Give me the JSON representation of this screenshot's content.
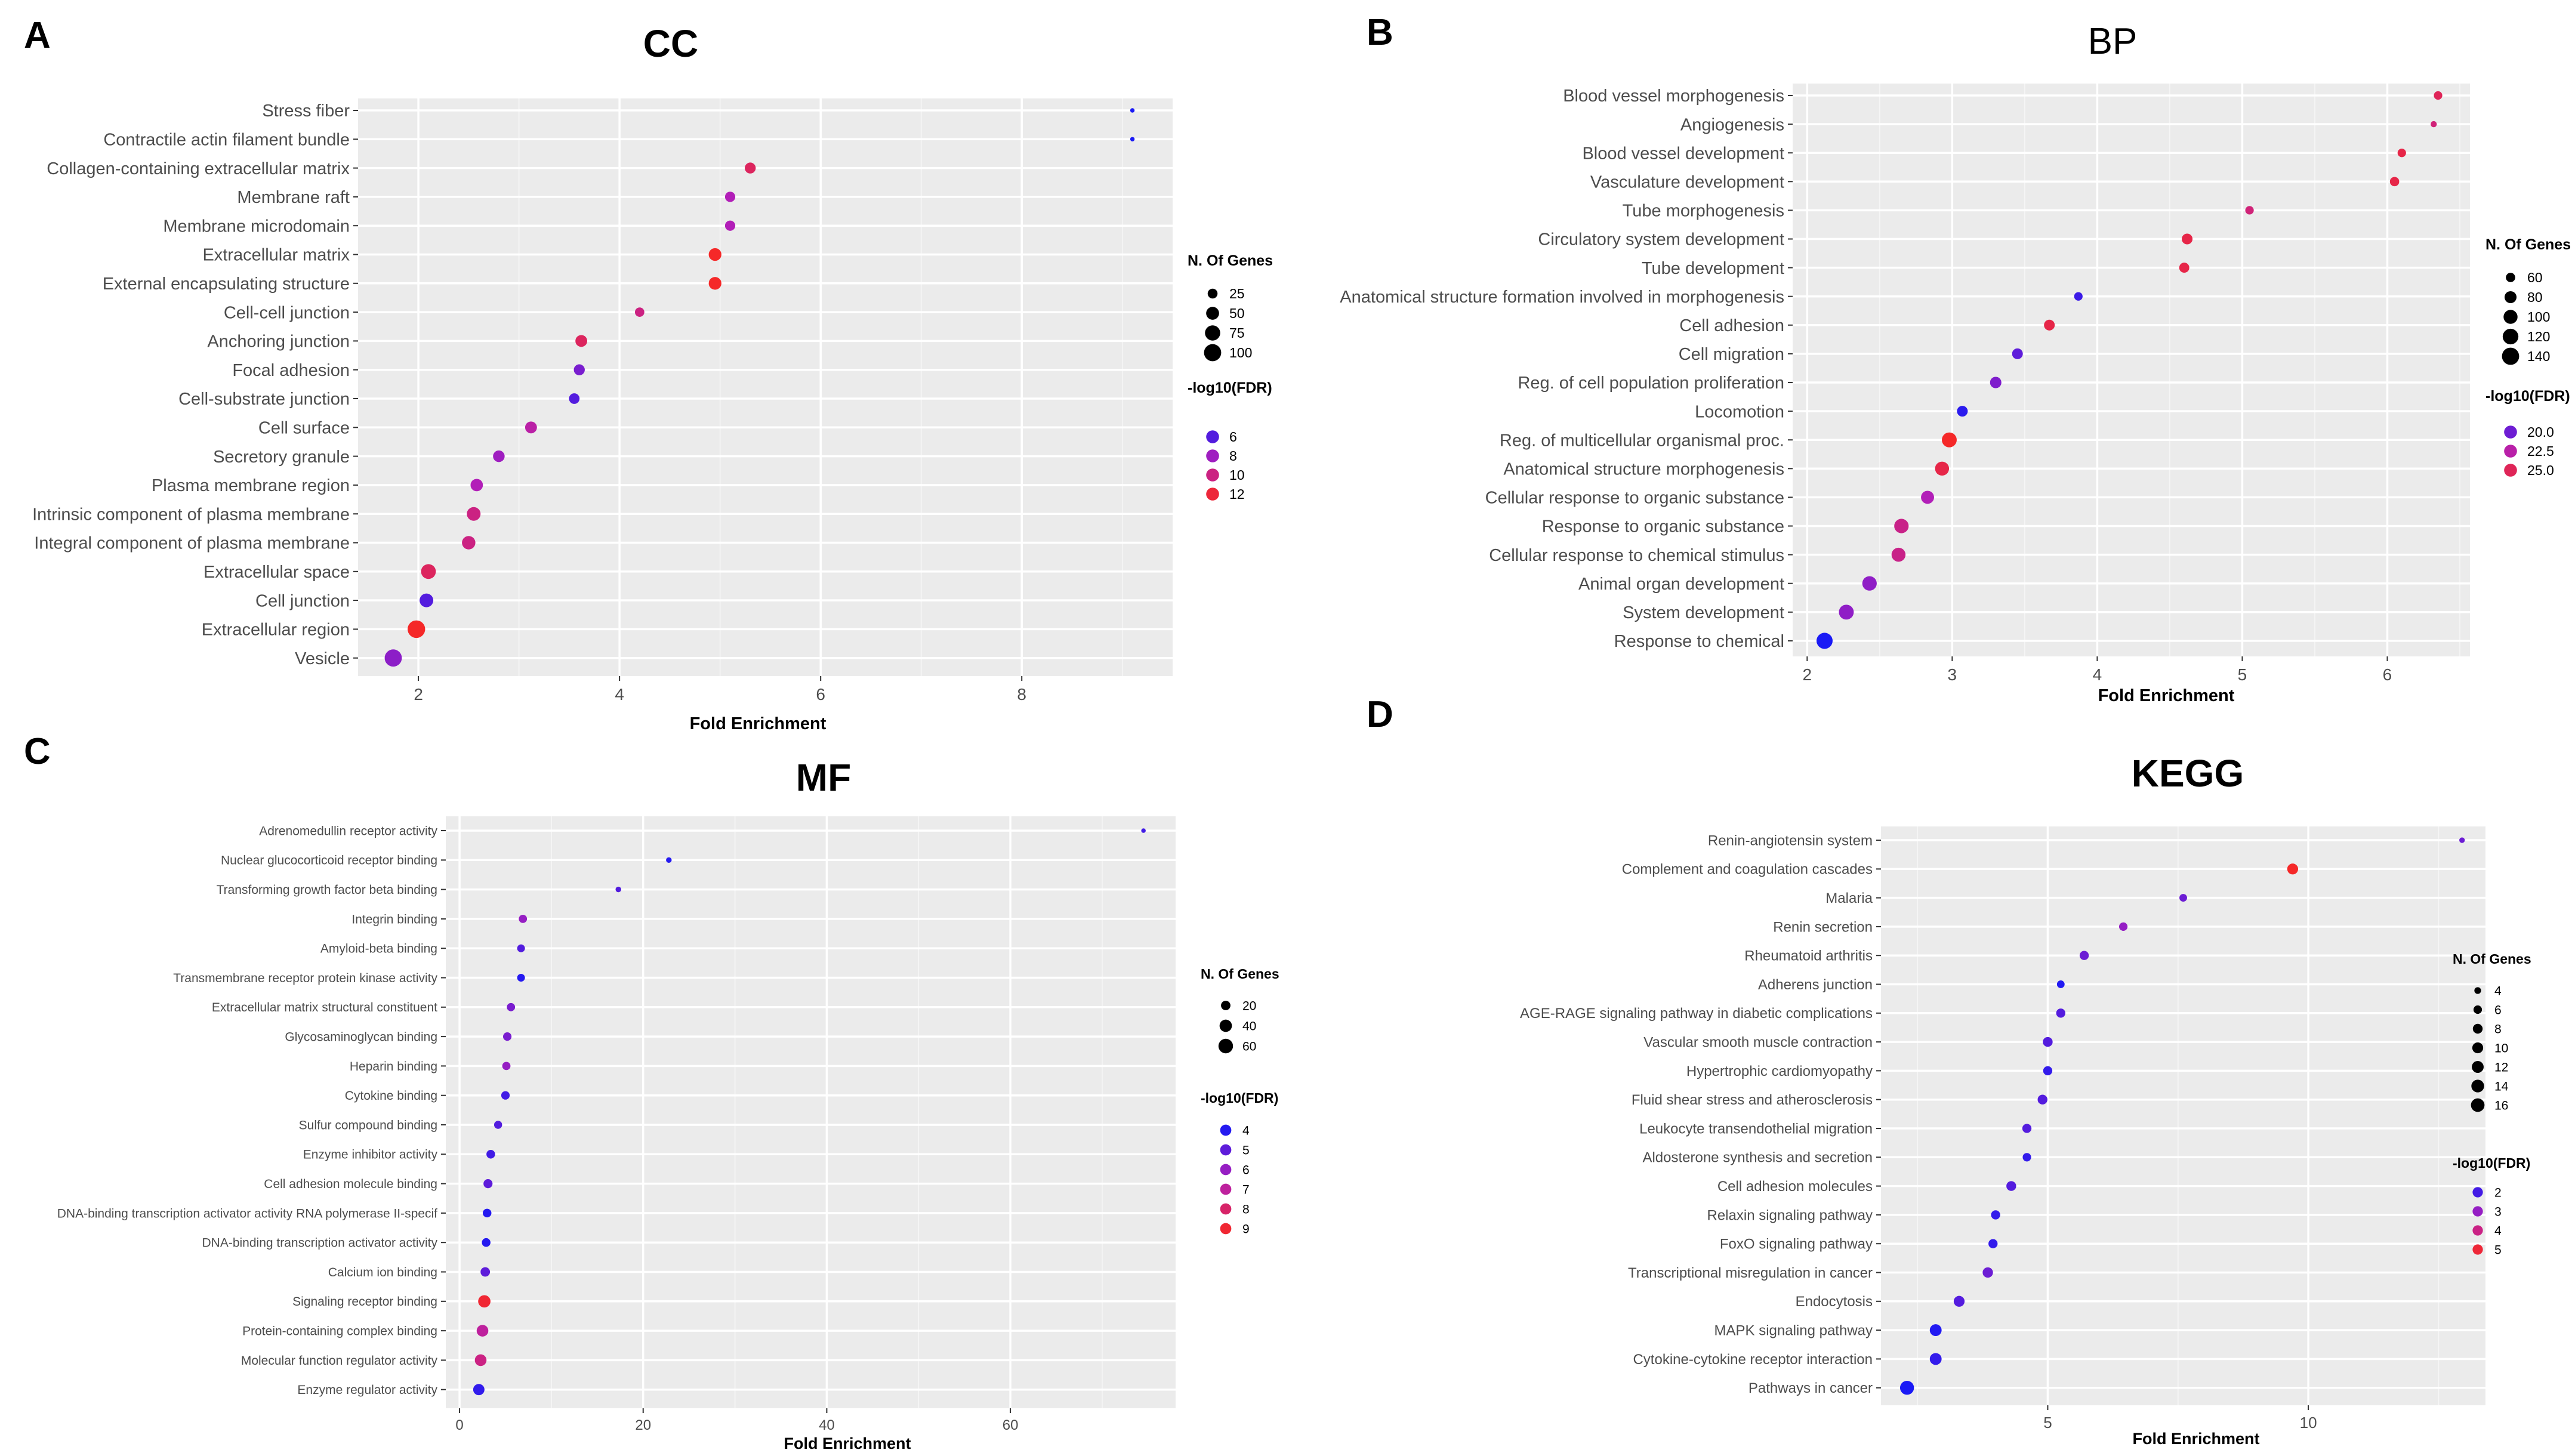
{
  "chart_data": [
    {
      "panel": "A",
      "title": "CC",
      "type": "scatter",
      "xlabel": "Fold Enrichment",
      "xlim": [
        1.4,
        9.5
      ],
      "xticks": [
        2,
        4,
        6,
        8
      ],
      "x_minor_ticks": [
        3,
        5,
        7,
        9
      ],
      "categories": [
        "Stress fiber",
        "Contractile actin filament bundle",
        "Collagen-containing extracellular matrix",
        "Membrane raft",
        "Membrane microdomain",
        "Extracellular matrix",
        "External encapsulating structure",
        "Cell-cell junction",
        "Anchoring junction",
        "Focal adhesion",
        "Cell-substrate junction",
        "Cell surface",
        "Secretory granule",
        "Plasma membrane region",
        "Intrinsic component of plasma membrane",
        "Integral component of plasma membrane",
        "Extracellular space",
        "Cell junction",
        "Extracellular region",
        "Vesicle"
      ],
      "fold_enrichment": [
        9.1,
        9.1,
        5.3,
        5.1,
        5.1,
        4.95,
        4.95,
        4.2,
        3.62,
        3.6,
        3.55,
        3.12,
        2.8,
        2.58,
        2.55,
        2.5,
        2.1,
        2.08,
        1.98,
        1.75
      ],
      "n_genes": [
        3,
        3,
        33,
        28,
        28,
        48,
        48,
        22,
        40,
        33,
        30,
        40,
        38,
        45,
        58,
        55,
        70,
        58,
        105,
        100
      ],
      "neg_log10_fdr": [
        4.5,
        4.5,
        11,
        8.5,
        8.5,
        12.5,
        12.5,
        10,
        11,
        7,
        6,
        9,
        8,
        8.5,
        10,
        10,
        11,
        6,
        12.5,
        7.5
      ],
      "color_range": [
        4.5,
        12.5
      ],
      "legend": {
        "size_title": "N. Of Genes",
        "size_values": [
          25,
          50,
          75,
          100
        ],
        "color_title": "-log10(FDR)",
        "color_values": [
          6,
          8,
          10,
          12
        ]
      }
    },
    {
      "panel": "B",
      "title": "BP",
      "type": "scatter",
      "xlabel": "Fold Enrichment",
      "xlim": [
        1.9,
        6.57
      ],
      "xticks": [
        2,
        3,
        4,
        5,
        6
      ],
      "x_minor_ticks": [
        2.5,
        3.5,
        4.5,
        5.5,
        6.5
      ],
      "categories": [
        "Blood vessel morphogenesis",
        "Angiogenesis",
        "Blood vessel development",
        "Vasculature development",
        "Tube morphogenesis",
        "Circulatory system development",
        "Tube development",
        "Anatomical structure formation involved in morphogenesis",
        "Cell adhesion",
        "Cell migration",
        "Reg. of cell population proliferation",
        "Locomotion",
        "Reg. of multicellular organismal proc.",
        "Anatomical structure morphogenesis",
        "Cellular response to organic substance",
        "Response to organic substance",
        "Cellular response to chemical stimulus",
        "Animal organ development",
        "System development",
        "Response to chemical"
      ],
      "fold_enrichment": [
        6.35,
        6.32,
        6.1,
        6.05,
        5.05,
        4.62,
        4.6,
        3.87,
        3.67,
        3.45,
        3.3,
        3.07,
        2.98,
        2.93,
        2.83,
        2.65,
        2.63,
        2.43,
        2.27,
        2.12
      ],
      "n_genes": [
        55,
        45,
        55,
        60,
        55,
        70,
        65,
        55,
        70,
        70,
        75,
        70,
        110,
        100,
        90,
        105,
        100,
        105,
        110,
        125
      ],
      "neg_log10_fdr": [
        25,
        24,
        25.5,
        25.5,
        24,
        25.5,
        25.5,
        18.5,
        25.5,
        19.5,
        20.5,
        18,
        26.5,
        25.5,
        22,
        23.5,
        23.5,
        21,
        21,
        17.5
      ],
      "color_range": [
        17.5,
        26.5
      ],
      "legend": {
        "size_title": "N. Of Genes",
        "size_values": [
          60,
          80,
          100,
          120,
          140
        ],
        "color_title": "-log10(FDR)",
        "color_values": [
          20.0,
          22.5,
          25.0
        ]
      }
    },
    {
      "panel": "C",
      "title": "MF",
      "type": "scatter",
      "xlabel": "Fold Enrichment",
      "xlim": [
        -1.5,
        78
      ],
      "xticks": [
        0,
        20,
        40,
        60
      ],
      "x_minor_ticks": [
        10,
        30,
        50,
        70
      ],
      "categories": [
        "Adrenomedullin receptor activity",
        "Nuclear glucocorticoid receptor binding",
        "Transforming growth factor beta binding",
        "Integrin binding",
        "Amyloid-beta binding",
        "Transmembrane receptor protein kinase activity",
        "Extracellular matrix structural constituent",
        "Glycosaminoglycan binding",
        "Heparin binding",
        "Cytokine binding",
        "Sulfur compound binding",
        "Enzyme inhibitor activity",
        "Cell adhesion molecule binding",
        "DNA-binding transcription activator activity RNA polymerase II-specif",
        "DNA-binding transcription activator activity",
        "Calcium ion binding",
        "Signaling receptor binding",
        "Protein-containing complex binding",
        "Molecular function regulator activity",
        "Enzyme regulator activity"
      ],
      "fold_enrichment": [
        74.5,
        22.8,
        17.3,
        6.9,
        6.7,
        6.7,
        5.6,
        5.2,
        5.1,
        5.0,
        4.2,
        3.4,
        3.1,
        3.0,
        2.9,
        2.8,
        2.7,
        2.5,
        2.3,
        2.1
      ],
      "n_genes": [
        3,
        5,
        5,
        14,
        12,
        12,
        14,
        15,
        14,
        15,
        13,
        16,
        18,
        16,
        16,
        20,
        40,
        35,
        35,
        32
      ],
      "neg_log10_fdr": [
        4.5,
        4,
        4.8,
        6,
        4.8,
        4,
        5.5,
        5.5,
        6,
        4.5,
        4.8,
        4.5,
        5,
        4,
        4,
        5,
        9,
        7,
        7.5,
        4.2
      ],
      "color_range": [
        3.8,
        9.2
      ],
      "legend": {
        "size_title": "N. Of Genes",
        "size_values": [
          20,
          40,
          60
        ],
        "color_title": "-log10(FDR)",
        "color_values": [
          4,
          5,
          6,
          7,
          8,
          9
        ]
      }
    },
    {
      "panel": "D",
      "title": "KEGG",
      "type": "scatter",
      "xlabel": "Fold Enrichment",
      "xlim": [
        1.8,
        13.4
      ],
      "xticks": [
        5,
        10
      ],
      "x_minor_ticks": [
        2.5,
        7.5,
        12.5
      ],
      "categories": [
        "Renin-angiotensin system",
        "Complement and coagulation cascades",
        "Malaria",
        "Renin secretion",
        "Rheumatoid arthritis",
        "Adherens junction",
        "AGE-RAGE signaling pathway in diabetic complications",
        "Vascular smooth muscle contraction",
        "Hypertrophic cardiomyopathy",
        "Fluid shear stress and atherosclerosis",
        "Leukocyte transendothelial migration",
        "Aldosterone synthesis and secretion",
        "Cell adhesion molecules",
        "Relaxin signaling pathway",
        "FoxO signaling pathway",
        "Transcriptional misregulation in cancer",
        "Endocytosis",
        "MAPK signaling pathway",
        "Cytokine-cytokine receptor interaction",
        "Pathways in cancer"
      ],
      "fold_enrichment": [
        12.95,
        9.7,
        7.6,
        6.45,
        5.7,
        5.25,
        5.25,
        5.0,
        5.0,
        4.9,
        4.6,
        4.6,
        4.3,
        4.0,
        3.95,
        3.85,
        3.3,
        2.85,
        2.85,
        2.3
      ],
      "n_genes": [
        3,
        10,
        5,
        6,
        7,
        5,
        7,
        8,
        7,
        8,
        7,
        6,
        8,
        7,
        7,
        9,
        10,
        12,
        12,
        17
      ],
      "neg_log10_fdr": [
        2.5,
        5.2,
        2.5,
        3,
        2.5,
        1.6,
        2.2,
        2.2,
        1.8,
        2.2,
        2.2,
        1.8,
        2.2,
        1.8,
        1.8,
        2.5,
        2.2,
        1.6,
        1.8,
        1.5
      ],
      "color_range": [
        1.5,
        5.2
      ],
      "legend": {
        "size_title": "N. Of Genes",
        "size_values": [
          4,
          6,
          8,
          10,
          12,
          14,
          16
        ],
        "color_title": "-log10(FDR)",
        "color_values": [
          2,
          3,
          4,
          5
        ]
      }
    }
  ]
}
